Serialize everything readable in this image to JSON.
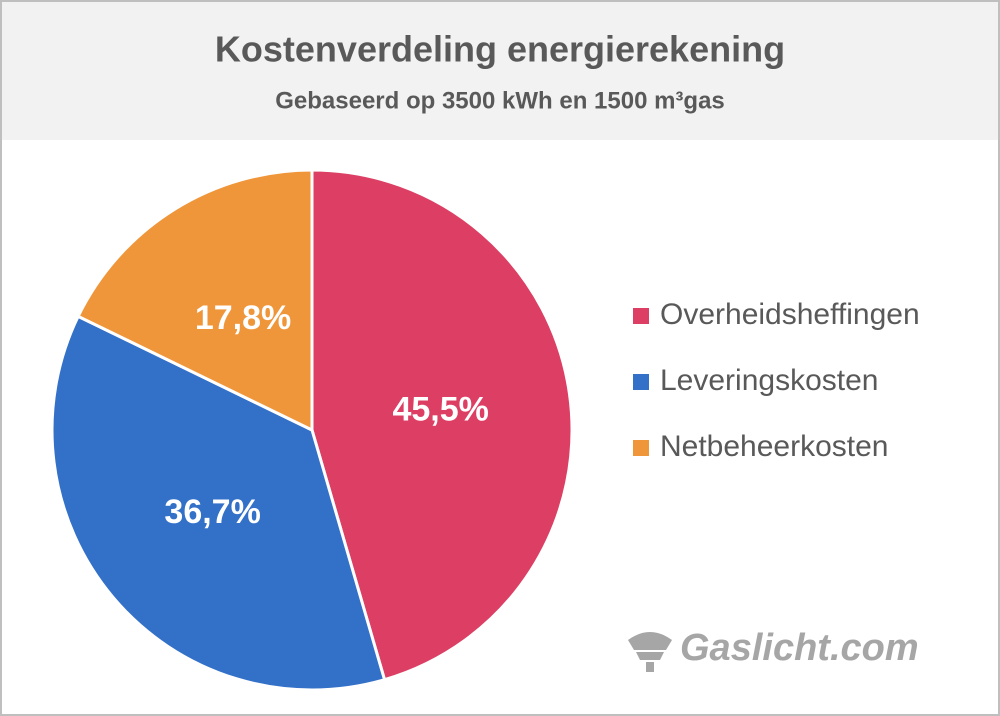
{
  "chart_data": {
    "type": "pie",
    "title": "Kostenverdeling energierekening",
    "subtitle": "Gebaseerd op 3500 kWh en 1500 m³gas",
    "categories": [
      "Overheidsheffingen",
      "Leveringskosten",
      "Netbeheerkosten"
    ],
    "values": [
      45.5,
      36.7,
      17.8
    ],
    "value_labels": [
      "45,5%",
      "36,7%",
      "17,8%"
    ],
    "colors": [
      "#dc3f63",
      "#3370c8",
      "#f0963a"
    ],
    "legend": "right",
    "watermark": "Gaslicht.com"
  }
}
